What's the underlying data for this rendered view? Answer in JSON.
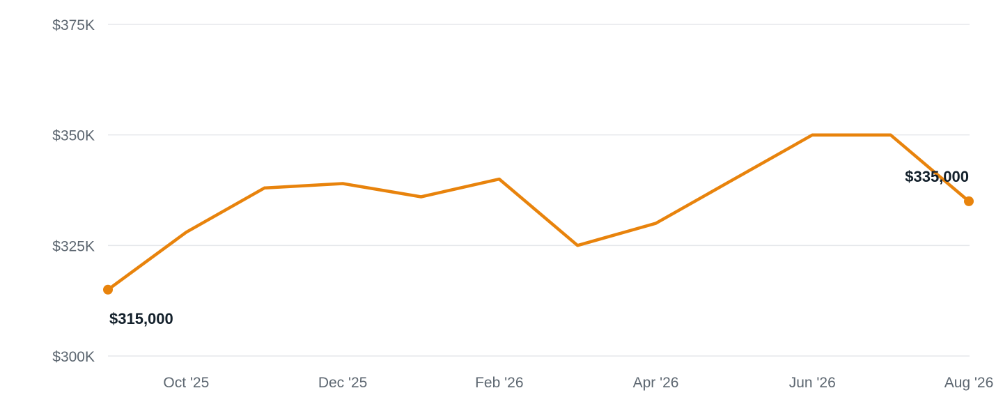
{
  "chart_data": {
    "type": "line",
    "x": [
      "2025-09",
      "2025-10",
      "2025-11",
      "2025-12",
      "2026-01",
      "2026-02",
      "2026-03",
      "2026-04",
      "2026-05",
      "2026-06",
      "2026-07",
      "2026-08"
    ],
    "series": [
      {
        "values": [
          315000,
          328000,
          338000,
          339000,
          336000,
          340000,
          325000,
          330000,
          340000,
          350000,
          350000,
          335000
        ]
      }
    ],
    "x_ticks": [
      {
        "x": "2025-10",
        "label": "Oct '25"
      },
      {
        "x": "2025-12",
        "label": "Dec '25"
      },
      {
        "x": "2026-02",
        "label": "Feb '26"
      },
      {
        "x": "2026-04",
        "label": "Apr '26"
      },
      {
        "x": "2026-06",
        "label": "Jun '26"
      },
      {
        "x": "2026-08",
        "label": "Aug '26"
      }
    ],
    "y_ticks": [
      {
        "value": 300000,
        "label": "$300K"
      },
      {
        "value": 325000,
        "label": "$325K"
      },
      {
        "value": 350000,
        "label": "$350K"
      },
      {
        "value": 375000,
        "label": "$375K"
      }
    ],
    "ylim": [
      300000,
      375000
    ],
    "grid": true,
    "color": "#e8830c",
    "annotations": [
      {
        "x": "2025-09",
        "text": "$315,000"
      },
      {
        "x": "2026-08",
        "text": "$335,000"
      }
    ],
    "title": "",
    "xlabel": "",
    "ylabel": ""
  }
}
